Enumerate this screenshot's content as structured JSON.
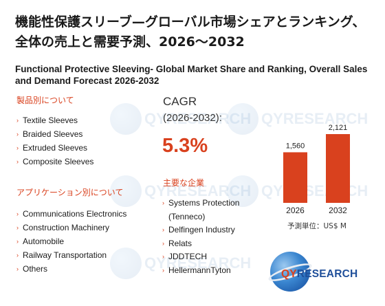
{
  "title_jp": "機能性保護スリーブ—グローバル市場シェアとランキング、全体の売上と需要予測、2026～2032",
  "title_en": "Functional Protective Sleeving- Global Market Share and Ranking, Overall Sales and Demand Forecast 2026-2032",
  "products": {
    "heading": "製品別について",
    "items": [
      "Textile Sleeves",
      "Braided Sleeves",
      "Extruded Sleeves",
      "Composite Sleeves"
    ]
  },
  "applications": {
    "heading": "アプリケーション別について",
    "items": [
      "Communications Electronics",
      "Construction Machinery",
      "Automobile",
      "Railway Transportation",
      "Others"
    ]
  },
  "cagr": {
    "label": "CAGR",
    "period": "(2026-2032):",
    "value": "5.3%"
  },
  "players": {
    "heading": "主要な企業",
    "items": [
      "Systems Protection (Tenneco)",
      "Delfingen Industry",
      "Relats",
      "JDDTECH",
      "HellermannTyton"
    ]
  },
  "chart_data": {
    "type": "bar",
    "categories": [
      "2026",
      "2032"
    ],
    "values": [
      1560,
      2121
    ],
    "value_labels": [
      "1,560",
      "2,121"
    ],
    "unit_label": "予測単位：US$ M",
    "bar_color": "#d9411e"
  },
  "watermark": "QYRESEARCH",
  "logo": {
    "prefix": "QY",
    "suffix": "RESEARCH"
  }
}
